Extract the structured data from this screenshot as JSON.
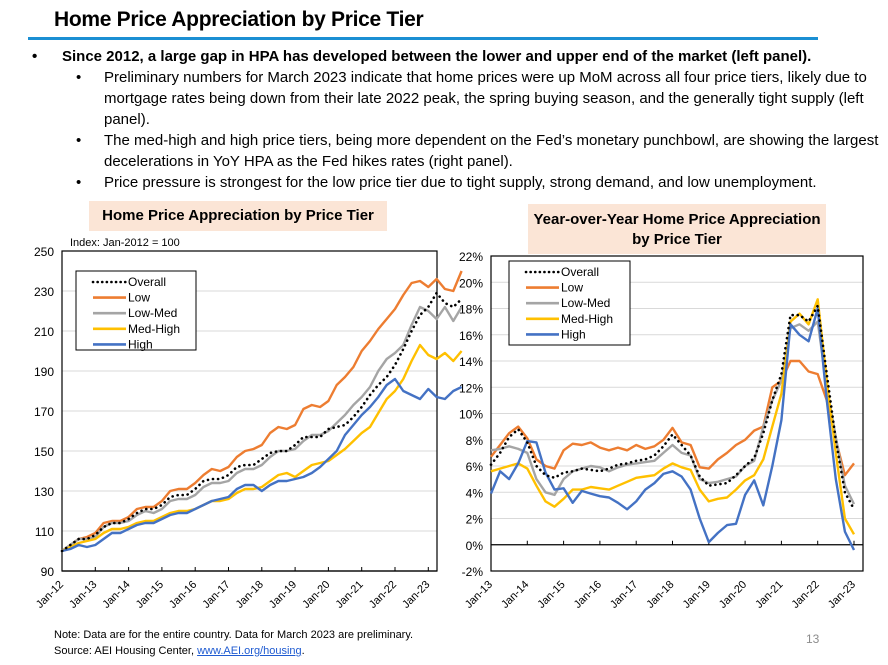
{
  "header": {
    "title": "Home Price Appreciation by Price Tier"
  },
  "bullets": {
    "main": "Since 2012, a large gap in HPA has developed between the lower and upper end of the market (left panel).",
    "sub": [
      "Preliminary numbers for March 2023 indicate that home prices were up MoM across all four price tiers, likely due to mortgage rates being down from their late 2022 peak, the spring buying season, and the generally tight supply (left panel).",
      "The med-high and high price tiers, being more dependent on the Fed’s monetary punchbowl, are showing the largest decelerations in YoY HPA as the Fed hikes rates (right panel).",
      "Price pressure is strongest for the low price tier due to tight supply, strong demand, and low unemployment."
    ],
    "bullet_glyph": "•"
  },
  "footer": {
    "note": "Note: Data are for the entire country. Data for March 2023 are preliminary.",
    "source_prefix": "Source: AEI Housing Center, ",
    "source_link": "www.AEI.org/housing",
    "source_suffix": ".",
    "page_number": "13"
  },
  "colors": {
    "overall": "#000000",
    "low": "#ed7d31",
    "low_med": "#a5a5a5",
    "med_high": "#ffc000",
    "high": "#4472c4",
    "title_rule": "#1b8fd3",
    "panel_title_bg": "#fbe5d6"
  },
  "chart_data": [
    {
      "type": "line",
      "title": "Home Price Appreciation by Price Tier",
      "subtitle": "Index: Jan-2012 = 100",
      "xlabel": "",
      "ylabel": "",
      "ylim": [
        90,
        250
      ],
      "yticks": [
        90,
        110,
        130,
        150,
        170,
        190,
        210,
        230,
        250
      ],
      "xticks": [
        "Jan-12",
        "Jan-13",
        "Jan-14",
        "Jan-15",
        "Jan-16",
        "Jan-17",
        "Jan-18",
        "Jan-19",
        "Jan-20",
        "Jan-21",
        "Jan-22",
        "Jan-23"
      ],
      "x_start": "Jan-12",
      "x_end": "Mar-23",
      "x_step": "quarterly",
      "grid": true,
      "legend_position": "top-left",
      "series": [
        {
          "name": "Overall",
          "style": "dotted",
          "color_key": "overall",
          "values": [
            100,
            103,
            106,
            106,
            108,
            112,
            114,
            114,
            116,
            119,
            121,
            121,
            123,
            127,
            128,
            128,
            131,
            135,
            136,
            136,
            138,
            142,
            143,
            143,
            146,
            149,
            150,
            150,
            153,
            157,
            157,
            157,
            161,
            162,
            163,
            167,
            172,
            178,
            183,
            187,
            193,
            201,
            210,
            218,
            222,
            229,
            224,
            222,
            226
          ]
        },
        {
          "name": "Low",
          "style": "solid",
          "color_key": "low",
          "values": [
            100,
            103,
            106,
            107,
            109,
            114,
            115,
            115,
            117,
            121,
            122,
            122,
            125,
            130,
            131,
            131,
            134,
            138,
            141,
            140,
            142,
            147,
            150,
            151,
            153,
            159,
            162,
            161,
            163,
            171,
            173,
            172,
            175,
            183,
            187,
            192,
            200,
            205,
            211,
            216,
            221,
            228,
            234,
            235,
            232,
            236,
            231,
            230,
            240
          ]
        },
        {
          "name": "Low-Med",
          "style": "solid",
          "color_key": "low_med",
          "values": [
            100,
            103,
            106,
            106,
            107,
            112,
            114,
            114,
            115,
            118,
            120,
            119,
            121,
            125,
            126,
            126,
            128,
            132,
            134,
            134,
            135,
            139,
            141,
            141,
            143,
            147,
            150,
            150,
            151,
            155,
            158,
            158,
            160,
            164,
            168,
            173,
            177,
            182,
            190,
            196,
            199,
            203,
            213,
            222,
            220,
            216,
            222,
            215,
            222
          ]
        },
        {
          "name": "Med-High",
          "style": "solid",
          "color_key": "med_high",
          "values": [
            100,
            102,
            104,
            105,
            106,
            109,
            111,
            111,
            112,
            114,
            115,
            115,
            117,
            119,
            120,
            120,
            121,
            123,
            125,
            125,
            126,
            129,
            131,
            131,
            132,
            135,
            138,
            139,
            137,
            140,
            143,
            144,
            145,
            148,
            151,
            155,
            159,
            162,
            169,
            176,
            180,
            186,
            195,
            203,
            198,
            196,
            199,
            195,
            200
          ]
        },
        {
          "name": "High",
          "style": "solid",
          "color_key": "high",
          "values": [
            100,
            101,
            103,
            102,
            103,
            106,
            109,
            109,
            111,
            113,
            114,
            114,
            116,
            118,
            119,
            119,
            121,
            123,
            125,
            126,
            127,
            131,
            133,
            133,
            130,
            133,
            135,
            135,
            136,
            137,
            139,
            142,
            146,
            150,
            158,
            163,
            168,
            172,
            177,
            183,
            186,
            180,
            178,
            176,
            181,
            177,
            176,
            180,
            182
          ]
        }
      ]
    },
    {
      "type": "line",
      "title": "Year-over-Year Home Price Appreciation by Price Tier",
      "xlabel": "",
      "ylabel": "",
      "ylim": [
        -2,
        22
      ],
      "yticks": [
        "-2%",
        "0%",
        "2%",
        "4%",
        "6%",
        "8%",
        "10%",
        "12%",
        "14%",
        "16%",
        "18%",
        "20%",
        "22%"
      ],
      "xticks": [
        "Jan-13",
        "Jan-14",
        "Jan-15",
        "Jan-16",
        "Jan-17",
        "Jan-18",
        "Jan-19",
        "Jan-20",
        "Jan-21",
        "Jan-22",
        "Jan-23"
      ],
      "x_start": "Jan-13",
      "x_end": "Mar-23",
      "x_step": "quarterly",
      "value_unit": "percent",
      "grid": true,
      "legend_position": "top-left",
      "series": [
        {
          "name": "Overall",
          "style": "dotted",
          "color_key": "overall",
          "values": [
            6.1,
            7.0,
            8.2,
            8.8,
            7.8,
            6.0,
            5.3,
            5.1,
            5.5,
            5.6,
            5.8,
            5.7,
            5.6,
            5.8,
            6.1,
            6.2,
            6.4,
            6.5,
            6.8,
            7.5,
            8.4,
            7.6,
            6.8,
            5.2,
            4.5,
            4.6,
            4.7,
            5.3,
            6.0,
            6.6,
            8.5,
            11.0,
            13.0,
            17.5,
            17.5,
            17.0,
            18.2,
            13.0,
            8.0,
            4.0,
            2.7
          ]
        },
        {
          "name": "Low",
          "style": "solid",
          "color_key": "low",
          "values": [
            6.7,
            7.6,
            8.5,
            9.0,
            8.1,
            6.5,
            6.0,
            5.8,
            7.2,
            7.7,
            7.6,
            7.8,
            7.4,
            7.2,
            7.4,
            7.2,
            7.6,
            7.3,
            7.5,
            8.0,
            8.9,
            7.8,
            7.6,
            5.9,
            5.8,
            6.5,
            7.0,
            7.6,
            8.0,
            8.7,
            9.0,
            12.0,
            12.5,
            14.0,
            14.0,
            13.2,
            13.0,
            11.0,
            8.0,
            5.3,
            6.2
          ]
        },
        {
          "name": "Low-Med",
          "style": "solid",
          "color_key": "low_med",
          "values": [
            7.2,
            7.3,
            7.5,
            7.3,
            7.0,
            5.0,
            4.0,
            3.8,
            5.0,
            5.6,
            5.8,
            6.0,
            5.9,
            5.6,
            5.9,
            6.1,
            6.2,
            6.3,
            6.4,
            7.0,
            7.6,
            7.0,
            6.8,
            5.0,
            4.7,
            4.8,
            5.0,
            5.2,
            6.0,
            6.4,
            9.0,
            11.0,
            12.5,
            16.5,
            16.8,
            16.3,
            17.0,
            12.0,
            8.2,
            4.5,
            3.1
          ]
        },
        {
          "name": "Med-High",
          "style": "solid",
          "color_key": "med_high",
          "values": [
            5.6,
            5.8,
            6.0,
            6.2,
            5.8,
            4.5,
            3.3,
            2.9,
            3.5,
            4.2,
            4.2,
            4.4,
            4.3,
            4.2,
            4.5,
            4.8,
            5.1,
            5.2,
            5.3,
            5.8,
            6.2,
            5.9,
            5.7,
            4.2,
            3.3,
            3.5,
            3.6,
            4.2,
            4.9,
            5.3,
            6.5,
            9.0,
            11.5,
            17.0,
            17.6,
            16.8,
            18.7,
            12.5,
            7.0,
            2.0,
            0.8
          ]
        },
        {
          "name": "High",
          "style": "solid",
          "color_key": "high",
          "values": [
            3.9,
            5.6,
            5.0,
            6.2,
            7.9,
            7.8,
            5.5,
            4.2,
            4.3,
            3.2,
            4.1,
            3.9,
            3.7,
            3.6,
            3.2,
            2.7,
            3.3,
            4.2,
            4.7,
            5.4,
            5.6,
            5.2,
            4.2,
            2.0,
            0.2,
            0.9,
            1.5,
            1.6,
            3.8,
            4.9,
            3.0,
            6.0,
            9.5,
            16.8,
            16.0,
            15.5,
            18.0,
            11.0,
            5.0,
            1.0,
            -0.4
          ]
        }
      ]
    }
  ]
}
